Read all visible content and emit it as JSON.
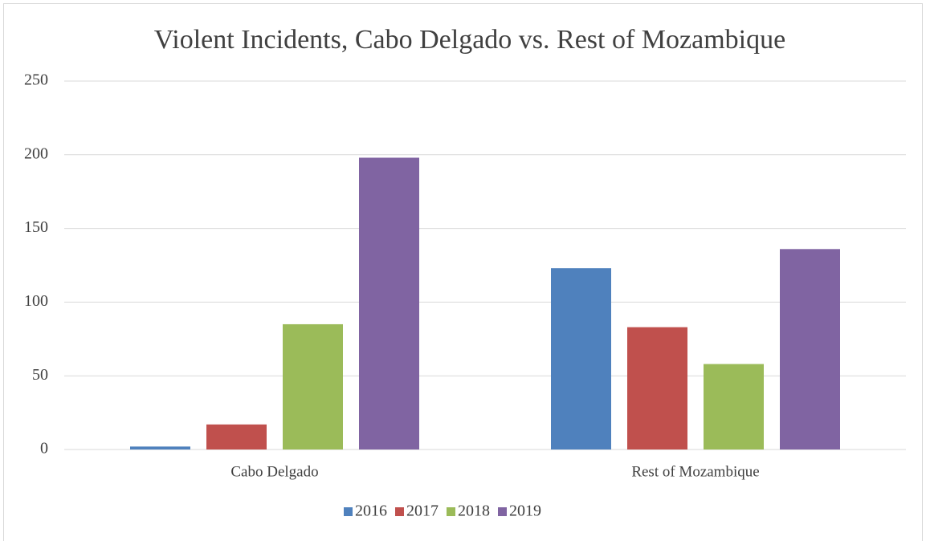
{
  "chart_data": {
    "type": "bar",
    "title": "Violent Incidents, Cabo Delgado vs. Rest of Mozambique",
    "categories": [
      "Cabo Delgado",
      "Rest of Mozambique"
    ],
    "series": [
      {
        "name": "2016",
        "color": "#4f81bd",
        "values": [
          2,
          123
        ]
      },
      {
        "name": "2017",
        "color": "#c0504d",
        "values": [
          17,
          83
        ]
      },
      {
        "name": "2018",
        "color": "#9bbb59",
        "values": [
          85,
          58
        ]
      },
      {
        "name": "2019",
        "color": "#8064a2",
        "values": [
          198,
          136
        ]
      }
    ],
    "ylim": [
      0,
      250
    ],
    "yticks": [
      0,
      50,
      100,
      150,
      200,
      250
    ],
    "grid": true,
    "legend": "bottom"
  }
}
